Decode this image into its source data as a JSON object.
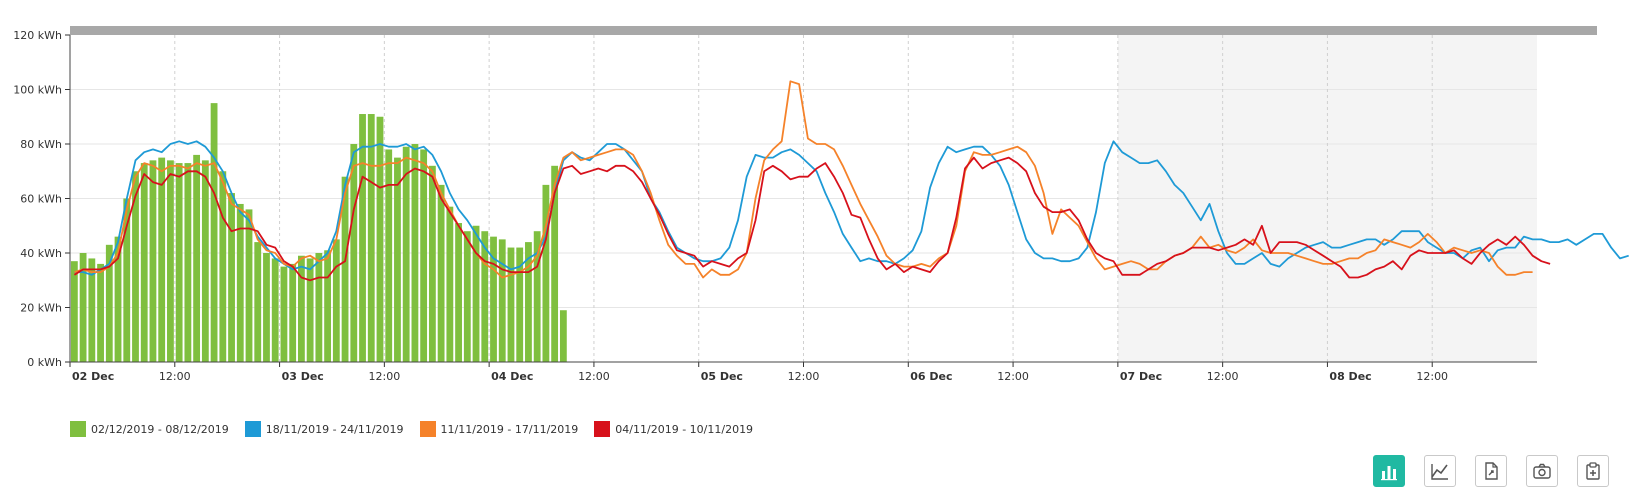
{
  "chart_data": {
    "type": "bar+line",
    "ylim": [
      0,
      120
    ],
    "y_ticks": [
      "0 kWh",
      "20 kWh",
      "40 kWh",
      "60 kWh",
      "80 kWh",
      "100 kWh",
      "120 kWh"
    ],
    "x_ticks": [
      {
        "label": "02 Dec",
        "day": true
      },
      {
        "label": "12:00",
        "day": false
      },
      {
        "label": "03 Dec",
        "day": true
      },
      {
        "label": "12:00",
        "day": false
      },
      {
        "label": "04 Dec",
        "day": true
      },
      {
        "label": "12:00",
        "day": false
      },
      {
        "label": "05 Dec",
        "day": true
      },
      {
        "label": "12:00",
        "day": false
      },
      {
        "label": "06 Dec",
        "day": true
      },
      {
        "label": "12:00",
        "day": false
      },
      {
        "label": "07 Dec",
        "day": true
      },
      {
        "label": "12:00",
        "day": false
      },
      {
        "label": "08 Dec",
        "day": true
      },
      {
        "label": "12:00",
        "day": false
      }
    ],
    "x_hours_start": 0,
    "x_hours_end": 168,
    "shaded_from_hours": 120,
    "grid": true,
    "legend_position": "bottom-left",
    "series": [
      {
        "name": "02/12/2019 - 08/12/2019",
        "kind": "bar",
        "color": "#7fbf3f",
        "x_hours": [
          0,
          1,
          2,
          3,
          4,
          5,
          6,
          7,
          8,
          9,
          10,
          11,
          12,
          13,
          14,
          15,
          16,
          17,
          18,
          19,
          20,
          21,
          22,
          23,
          24,
          25,
          26,
          27,
          28,
          29,
          30,
          31,
          32,
          33,
          34,
          35,
          36,
          37,
          38,
          39,
          40,
          41,
          42,
          43,
          44,
          45,
          46,
          47,
          48,
          49,
          50,
          51,
          52,
          53,
          54,
          55,
          56,
          57
        ],
        "values": [
          37,
          40,
          38,
          36,
          43,
          46,
          60,
          70,
          73,
          74,
          75,
          74,
          73,
          73,
          76,
          74,
          95,
          70,
          62,
          58,
          56,
          44,
          40,
          38,
          35,
          36,
          39,
          38,
          40,
          41,
          45,
          68,
          80,
          91,
          91,
          90,
          78,
          75,
          79,
          80,
          78,
          72,
          65,
          57,
          51,
          48,
          50,
          48,
          46,
          45,
          42,
          42,
          44,
          48,
          65,
          72,
          19,
          0
        ]
      },
      {
        "name": "18/11/2019 - 24/11/2019",
        "kind": "line",
        "color": "#1e9ad6",
        "values": [
          33,
          33,
          32,
          34,
          36,
          44,
          60,
          74,
          77,
          78,
          77,
          80,
          81,
          80,
          81,
          79,
          75,
          70,
          62,
          55,
          52,
          46,
          42,
          38,
          36,
          34,
          35,
          34,
          37,
          40,
          48,
          65,
          77,
          79,
          79,
          80,
          79,
          79,
          80,
          78,
          79,
          76,
          70,
          62,
          56,
          52,
          47,
          42,
          38,
          36,
          34,
          35,
          38,
          40,
          46,
          62,
          74,
          77,
          75,
          74,
          77,
          80,
          80,
          78,
          74,
          70,
          60,
          55,
          48,
          42,
          40,
          38,
          37,
          37,
          38,
          42,
          52,
          68,
          76,
          75,
          75,
          77,
          78,
          76,
          73,
          70,
          62,
          55,
          47,
          42,
          37,
          38,
          37,
          37,
          36,
          38,
          41,
          48,
          64,
          73,
          79,
          77,
          78,
          79,
          79,
          76,
          72,
          65,
          55,
          45,
          40,
          38,
          38,
          37,
          37,
          38,
          42,
          55,
          73,
          81,
          77,
          75,
          73,
          73,
          74,
          70,
          65,
          62,
          57,
          52,
          58,
          48,
          40,
          36,
          36,
          38,
          40,
          36,
          35,
          38,
          40,
          42,
          43,
          44,
          42,
          42,
          43,
          44,
          45,
          45,
          43,
          45,
          48,
          48,
          48,
          44,
          42,
          40,
          40,
          38,
          41,
          42,
          37,
          41,
          42,
          42,
          46,
          45,
          45,
          44,
          44,
          45,
          43,
          45,
          47,
          47,
          42,
          38,
          39
        ]
      },
      {
        "name": "11/11/2019 - 17/11/2019",
        "kind": "line",
        "color": "#f5822a",
        "values": [
          33,
          34,
          33,
          33,
          35,
          40,
          56,
          68,
          73,
          72,
          70,
          72,
          72,
          71,
          73,
          72,
          73,
          66,
          58,
          56,
          54,
          45,
          41,
          40,
          36,
          35,
          38,
          39,
          37,
          38,
          45,
          62,
          72,
          73,
          72,
          72,
          73,
          73,
          75,
          74,
          73,
          70,
          62,
          56,
          50,
          45,
          40,
          36,
          34,
          31,
          32,
          33,
          35,
          39,
          50,
          65,
          75,
          77,
          74,
          75,
          76,
          77,
          78,
          78,
          76,
          70,
          62,
          52,
          43,
          39,
          36,
          36,
          31,
          34,
          32,
          32,
          34,
          40,
          60,
          74,
          78,
          81,
          103,
          102,
          82,
          80,
          80,
          78,
          72,
          65,
          58,
          52,
          46,
          39,
          36,
          35,
          35,
          36,
          35,
          38,
          40,
          50,
          70,
          77,
          76,
          76,
          77,
          78,
          79,
          77,
          72,
          62,
          47,
          56,
          53,
          50,
          44,
          38,
          34,
          35,
          36,
          37,
          36,
          34,
          34,
          37,
          39,
          40,
          42,
          46,
          42,
          43,
          41,
          40,
          42,
          45,
          41,
          40,
          40,
          40,
          39,
          38,
          37,
          36,
          36,
          37,
          38,
          38,
          40,
          41,
          45,
          44,
          43,
          42,
          44,
          47,
          44,
          40,
          42,
          41,
          40,
          41,
          40,
          35,
          32,
          32,
          33,
          33
        ]
      },
      {
        "name": "04/11/2019 - 10/11/2019",
        "kind": "line",
        "color": "#d7111b",
        "values": [
          32,
          34,
          34,
          34,
          35,
          38,
          50,
          61,
          69,
          66,
          65,
          69,
          68,
          70,
          70,
          68,
          62,
          53,
          48,
          49,
          49,
          48,
          43,
          42,
          37,
          35,
          31,
          30,
          31,
          31,
          35,
          37,
          56,
          68,
          66,
          64,
          65,
          65,
          69,
          71,
          70,
          68,
          60,
          55,
          50,
          45,
          40,
          37,
          36,
          34,
          33,
          33,
          33,
          35,
          45,
          62,
          71,
          72,
          69,
          70,
          71,
          70,
          72,
          72,
          70,
          66,
          60,
          54,
          47,
          41,
          40,
          39,
          35,
          37,
          36,
          35,
          38,
          40,
          52,
          70,
          72,
          70,
          67,
          68,
          68,
          71,
          73,
          68,
          62,
          54,
          53,
          45,
          38,
          34,
          36,
          33,
          35,
          34,
          33,
          37,
          40,
          53,
          71,
          75,
          71,
          73,
          74,
          75,
          73,
          70,
          62,
          57,
          55,
          55,
          56,
          52,
          45,
          40,
          38,
          37,
          32,
          32,
          32,
          34,
          36,
          37,
          39,
          40,
          42,
          42,
          42,
          41,
          42,
          43,
          45,
          43,
          50,
          40,
          44,
          44,
          44,
          43,
          41,
          39,
          37,
          35,
          31,
          31,
          32,
          34,
          35,
          37,
          34,
          39,
          41,
          40,
          40,
          40,
          41,
          38,
          36,
          40,
          43,
          45,
          43,
          46,
          43,
          39,
          37,
          36
        ]
      }
    ]
  },
  "toolbar": {
    "buttons": [
      {
        "name": "bar-chart-button",
        "active": true
      },
      {
        "name": "line-chart-button",
        "active": false
      },
      {
        "name": "export-file-button",
        "active": false
      },
      {
        "name": "screenshot-button",
        "active": false
      },
      {
        "name": "copy-clipboard-button",
        "active": false
      }
    ]
  }
}
